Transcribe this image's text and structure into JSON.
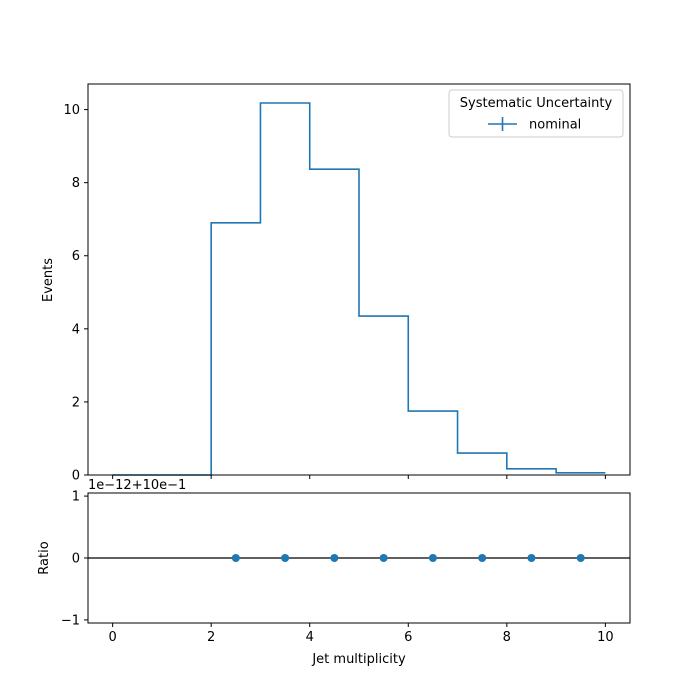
{
  "chart_data": [
    {
      "type": "histogram",
      "panel": "main",
      "ylabel": "Events",
      "xlim": [
        -0.5,
        10.5
      ],
      "ylim": [
        0,
        10.7
      ],
      "yticks": [
        0,
        2,
        4,
        6,
        8,
        10
      ],
      "bin_edges": [
        0,
        1,
        2,
        3,
        4,
        5,
        6,
        7,
        8,
        9,
        10
      ],
      "series": [
        {
          "name": "nominal",
          "color": "#1f77b4",
          "values": [
            0.0,
            0.0,
            6.9,
            10.18,
            8.37,
            4.35,
            1.75,
            0.6,
            0.17,
            0.06
          ]
        }
      ],
      "legend": {
        "title": "Systematic Uncertainty",
        "entries": [
          "nominal"
        ],
        "placement": "upper-right"
      }
    },
    {
      "type": "scatter",
      "panel": "ratio",
      "ylabel": "Ratio",
      "xlabel": "Jet multiplicity",
      "xlim": [
        -0.5,
        10.5
      ],
      "ylim": [
        -1.05,
        1.05
      ],
      "yticks": [
        -1,
        0,
        1
      ],
      "xticks": [
        0,
        2,
        4,
        6,
        8,
        10
      ],
      "offset_text": "1e−12+10e−1",
      "reference_line": 0,
      "x": [
        2.5,
        3.5,
        4.5,
        5.5,
        6.5,
        7.5,
        8.5,
        9.5
      ],
      "y": [
        0,
        0,
        0,
        0,
        0,
        0,
        0,
        0
      ],
      "color": "#1f77b4"
    }
  ]
}
